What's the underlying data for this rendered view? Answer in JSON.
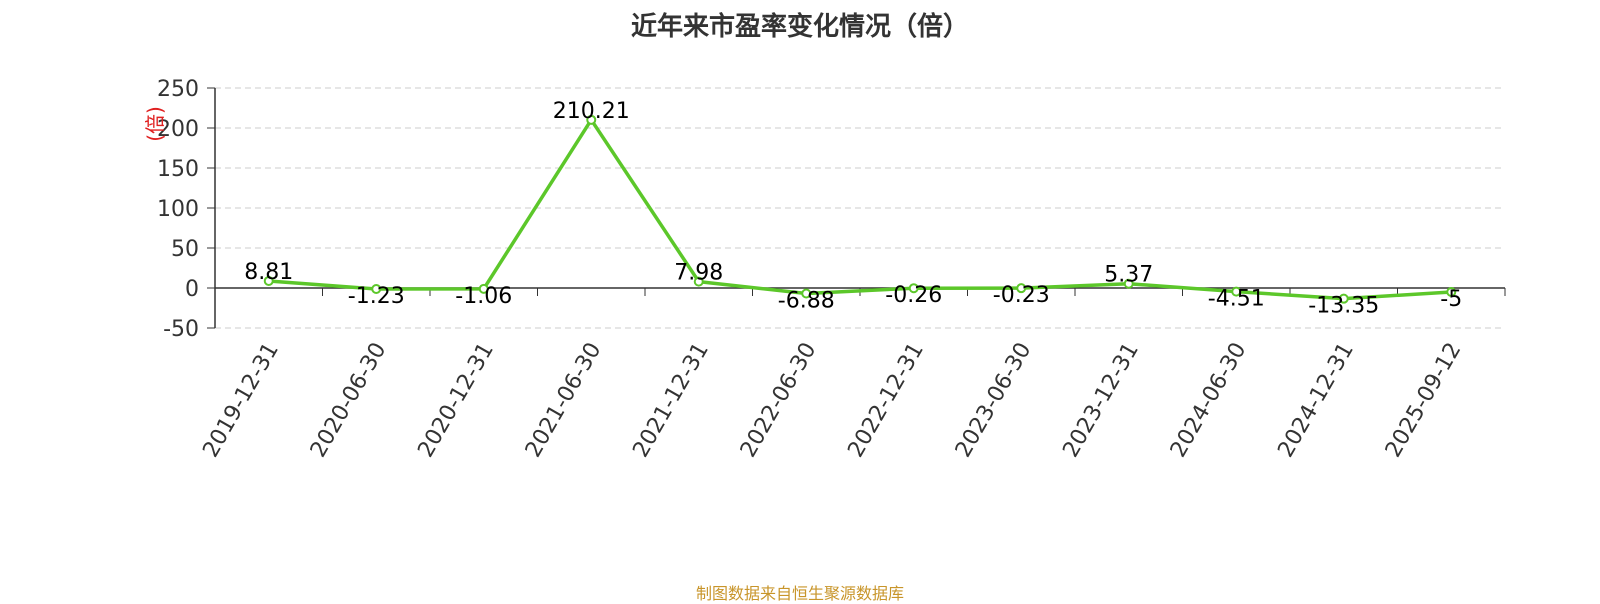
{
  "chart_data": {
    "type": "line",
    "title": "近年来市盈率变化情况（倍）",
    "ylabel": "(倍)",
    "ylim": [
      -50,
      250
    ],
    "yticks": [
      -50,
      0,
      50,
      100,
      150,
      200,
      250
    ],
    "ytick_labels": [
      "-50",
      "0",
      "50",
      "100",
      "150",
      "200",
      "250"
    ],
    "categories": [
      "2019-12-31",
      "2020-06-30",
      "2020-12-31",
      "2021-06-30",
      "2021-12-31",
      "2022-06-30",
      "2022-12-31",
      "2023-06-30",
      "2023-12-31",
      "2024-06-30",
      "2024-12-31",
      "2025-09-12"
    ],
    "series": [
      {
        "values": [
          8.81,
          -1.23,
          -1.06,
          210.21,
          7.98,
          -6.88,
          -0.26,
          -0.23,
          5.37,
          -4.51,
          -13.35,
          -5
        ],
        "labels": [
          "8.81",
          "-1.23",
          "-1.06",
          "210.21",
          "7.98",
          "-6.88",
          "-0.26",
          "-0.23",
          "5.37",
          "-4.51",
          "-13.35",
          "-5"
        ],
        "color": "#5cc72a"
      }
    ],
    "grid": true,
    "legend": "none",
    "colors": {
      "axis": "#333333",
      "grid": "#cccccc",
      "ylabel": "#e02020",
      "text": "#333333",
      "point_fill": "#ffffff"
    }
  },
  "source_note": "制图数据来自恒生聚源数据库"
}
